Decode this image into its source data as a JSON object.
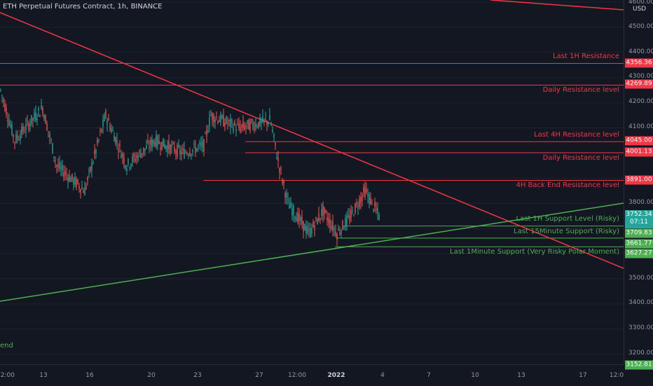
{
  "header": {
    "title": "ETH Perpetual Futures Contract, 1h, BINANCE"
  },
  "axis": {
    "currency": "USD",
    "price_ticks": [
      "4600.00",
      "4500.00",
      "4400.00",
      "4300.00",
      "4200.00",
      "4100.00",
      "3800.00",
      "3500.00",
      "3400.00",
      "3300.00",
      "3200.00"
    ],
    "time_ticks": [
      "12:00",
      "13",
      "16",
      "20",
      "23",
      "27",
      "12:00",
      "2022",
      "4",
      "7",
      "10",
      "13",
      "17",
      "12:0"
    ]
  },
  "levels": [
    {
      "label": "Last 1H Resistance",
      "price": "4356.36",
      "color": "#f23645"
    },
    {
      "label": "Daily Resistance level",
      "price": "4269.89",
      "color": "#f23645"
    },
    {
      "label": "Last 4H Resistance level",
      "price": "4045.00",
      "color": "#f23645"
    },
    {
      "label": "Daily Resistance level",
      "price": "4001.13",
      "color": "#f23645"
    },
    {
      "label": "4H Back End Resistance level",
      "price": "3891.00",
      "color": "#f23645"
    },
    {
      "label": "Last 1H Support Level (Risky)",
      "price": "3709.83",
      "color": "#4caf50"
    },
    {
      "label": "Last 15Minute Support (Risky)",
      "price": "3661.77",
      "color": "#4caf50"
    },
    {
      "label": "Last 1Minute Support (Very Risky Polar Moment)",
      "price": "3627.27",
      "color": "#4caf50"
    }
  ],
  "current_price": {
    "value": "3752.34",
    "countdown": "07:11"
  },
  "bottom_level": {
    "price": "3152.81"
  },
  "legend_fragment": "end",
  "colors": {
    "bg": "#131722",
    "up": "#26a69a",
    "down": "#ef5350",
    "resistance": "#f23645",
    "support": "#4caf50"
  }
}
